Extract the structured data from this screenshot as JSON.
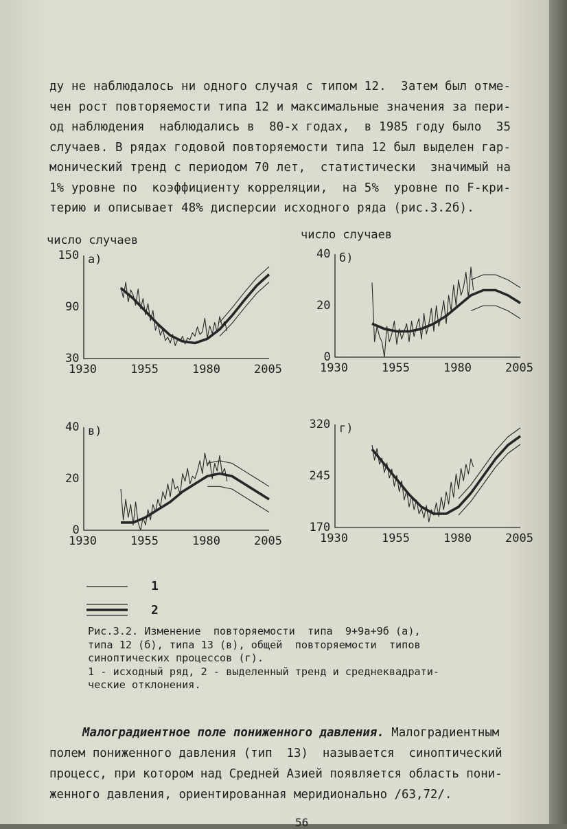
{
  "body_text": {
    "lines": [
      "ду не наблюдалось ни одного случая с типом 12.  Затем был отме-",
      "чен рост повторяемости типа 12 и максимальные значения за пери-",
      "од наблюдения  наблюдались в  80-х годах,  в 1985 году было  35",
      "случаев. В рядах годовой повторяемости типа 12 был выделен гар-",
      "монический тренд с периодом 70 лет,  статистически  значимый на",
      "1% уровне по  коэффициенту корреляции,  на 5%  уровне по F-кри-",
      "терию и описывает 48% дисперсии исходного ряда (рис.3.2б)."
    ]
  },
  "figure": {
    "ylabel_left": "число случаев",
    "ylabel_right": "число случаев",
    "legend": [
      {
        "label": "1"
      },
      {
        "label": "2"
      }
    ],
    "caption_lines": [
      "Рис.3.2. Изменение  повторяемости  типа  9+9а+9б (а),",
      "типа 12 (б), типа 13 (в), общей  повторяемости  типов",
      "синоптических процессов (г).",
      "1 - исходный ряд, 2 - выделенный тренд и среднеквадрати-",
      "ческие отклонения."
    ]
  },
  "chart_data": [
    {
      "type": "line",
      "panel": "а)",
      "x_ticks": [
        "1930",
        "1955",
        "1980",
        "2005"
      ],
      "y_ticks": [
        "30",
        "90",
        "150"
      ],
      "ylim": [
        30,
        150
      ],
      "xlim": [
        1930,
        2005
      ],
      "series": [
        {
          "name": "1",
          "x": [
            1945,
            1946,
            1947,
            1948,
            1949,
            1950,
            1951,
            1952,
            1953,
            1954,
            1955,
            1956,
            1957,
            1958,
            1959,
            1960,
            1961,
            1962,
            1963,
            1964,
            1965,
            1966,
            1967,
            1968,
            1969,
            1970,
            1971,
            1972,
            1973,
            1974,
            1975,
            1976,
            1977,
            1978,
            1979,
            1980,
            1981,
            1982,
            1983,
            1984,
            1985,
            1986,
            1987,
            1988
          ],
          "y": [
            113,
            101,
            119,
            96,
            110,
            104,
            92,
            111,
            88,
            100,
            81,
            94,
            74,
            86,
            63,
            71,
            57,
            64,
            51,
            55,
            48,
            58,
            45,
            52,
            50,
            56,
            47,
            54,
            52,
            60,
            56,
            67,
            58,
            61,
            77,
            54,
            68,
            59,
            72,
            60,
            79,
            68,
            73,
            62
          ]
        },
        {
          "name": "2",
          "x": [
            1945,
            1950,
            1955,
            1960,
            1965,
            1970,
            1975,
            1980,
            1985,
            1990,
            1995,
            2000,
            2005
          ],
          "y": [
            112,
            100,
            85,
            70,
            57,
            50,
            48,
            53,
            64,
            80,
            98,
            115,
            128
          ]
        },
        {
          "name": "2 (+σ)",
          "x": [
            1985,
            1990,
            1995,
            2000,
            2005
          ],
          "y": [
            72,
            89,
            107,
            124,
            137
          ]
        },
        {
          "name": "2 (-σ)",
          "x": [
            1985,
            1990,
            1995,
            2000,
            2005
          ],
          "y": [
            56,
            71,
            89,
            106,
            119
          ]
        }
      ]
    },
    {
      "type": "line",
      "panel": "б)",
      "x_ticks": [
        "1930",
        "1955",
        "1980",
        "2005"
      ],
      "y_ticks": [
        "0",
        "20",
        "40"
      ],
      "ylim": [
        0,
        40
      ],
      "xlim": [
        1930,
        2005
      ],
      "series": [
        {
          "name": "1",
          "x": [
            1945,
            1946,
            1947,
            1948,
            1949,
            1950,
            1951,
            1952,
            1953,
            1954,
            1955,
            1956,
            1957,
            1958,
            1959,
            1960,
            1961,
            1962,
            1963,
            1964,
            1965,
            1966,
            1967,
            1968,
            1969,
            1970,
            1971,
            1972,
            1973,
            1974,
            1975,
            1976,
            1977,
            1978,
            1979,
            1980,
            1981,
            1982,
            1983,
            1984,
            1985,
            1986
          ],
          "y": [
            29,
            6,
            12,
            8,
            6,
            0,
            12,
            6,
            9,
            14,
            5,
            11,
            7,
            10,
            13,
            6,
            14,
            8,
            12,
            15,
            7,
            17,
            9,
            13,
            19,
            10,
            20,
            12,
            16,
            22,
            13,
            24,
            18,
            28,
            20,
            30,
            24,
            27,
            33,
            23,
            35,
            26
          ]
        },
        {
          "name": "2",
          "x": [
            1945,
            1950,
            1955,
            1960,
            1965,
            1970,
            1975,
            1980,
            1985,
            1990,
            1995,
            2000,
            2005
          ],
          "y": [
            13,
            11,
            10,
            10,
            11,
            13,
            16,
            20,
            24,
            26,
            26,
            24,
            21
          ]
        },
        {
          "name": "2 (+σ)",
          "x": [
            1985,
            1990,
            1995,
            2000,
            2005
          ],
          "y": [
            30,
            32,
            32,
            30,
            27
          ]
        },
        {
          "name": "2 (-σ)",
          "x": [
            1985,
            1990,
            1995,
            2000,
            2005
          ],
          "y": [
            18,
            20,
            20,
            18,
            15
          ]
        }
      ]
    },
    {
      "type": "line",
      "panel": "в)",
      "x_ticks": [
        "1930",
        "1955",
        "1980",
        "2005"
      ],
      "y_ticks": [
        "0",
        "20",
        "40"
      ],
      "ylim": [
        0,
        40
      ],
      "xlim": [
        1930,
        2005
      ],
      "series": [
        {
          "name": "1",
          "x": [
            1945,
            1946,
            1947,
            1948,
            1949,
            1950,
            1951,
            1952,
            1953,
            1954,
            1955,
            1956,
            1957,
            1958,
            1959,
            1960,
            1961,
            1962,
            1963,
            1964,
            1965,
            1966,
            1967,
            1968,
            1969,
            1970,
            1971,
            1972,
            1973,
            1974,
            1975,
            1976,
            1977,
            1978,
            1979,
            1980,
            1981,
            1982,
            1983,
            1984,
            1985,
            1986,
            1987,
            1988
          ],
          "y": [
            16,
            4,
            12,
            5,
            10,
            2,
            11,
            3,
            0,
            5,
            2,
            8,
            4,
            10,
            7,
            12,
            9,
            15,
            12,
            18,
            13,
            20,
            16,
            17,
            14,
            22,
            19,
            24,
            18,
            21,
            20,
            23,
            27,
            22,
            30,
            25,
            27,
            20,
            26,
            23,
            29,
            22,
            24,
            19
          ]
        },
        {
          "name": "2",
          "x": [
            1945,
            1950,
            1955,
            1960,
            1965,
            1970,
            1975,
            1980,
            1985,
            1990,
            1995,
            2000,
            2005
          ],
          "y": [
            3,
            3,
            5,
            8,
            11,
            15,
            18,
            21,
            22,
            21,
            18,
            15,
            12
          ]
        },
        {
          "name": "2 (+σ)",
          "x": [
            1980,
            1985,
            1990,
            1995,
            2000,
            2005
          ],
          "y": [
            26,
            27,
            26,
            23,
            20,
            17
          ]
        },
        {
          "name": "2 (-σ)",
          "x": [
            1980,
            1985,
            1990,
            1995,
            2000,
            2005
          ],
          "y": [
            17,
            17,
            16,
            13,
            10,
            7
          ]
        }
      ]
    },
    {
      "type": "line",
      "panel": "г)",
      "x_ticks": [
        "1930",
        "1955",
        "1980",
        "2005"
      ],
      "y_ticks": [
        "170",
        "245",
        "320"
      ],
      "ylim": [
        170,
        320
      ],
      "xlim": [
        1930,
        2005
      ],
      "series": [
        {
          "name": "1",
          "x": [
            1945,
            1946,
            1947,
            1948,
            1949,
            1950,
            1951,
            1952,
            1953,
            1954,
            1955,
            1956,
            1957,
            1958,
            1959,
            1960,
            1961,
            1962,
            1963,
            1964,
            1965,
            1966,
            1967,
            1968,
            1969,
            1970,
            1971,
            1972,
            1973,
            1974,
            1975,
            1976,
            1977,
            1978,
            1979,
            1980,
            1981,
            1982,
            1983,
            1984,
            1985,
            1986
          ],
          "y": [
            290,
            268,
            285,
            262,
            271,
            250,
            264,
            242,
            255,
            230,
            246,
            222,
            238,
            210,
            224,
            200,
            216,
            196,
            210,
            190,
            198,
            184,
            202,
            178,
            196,
            188,
            206,
            186,
            214,
            196,
            222,
            204,
            236,
            214,
            248,
            226,
            256,
            238,
            262,
            248,
            270,
            258
          ]
        },
        {
          "name": "2",
          "x": [
            1945,
            1950,
            1955,
            1960,
            1965,
            1970,
            1975,
            1980,
            1985,
            1990,
            1995,
            2000,
            2005
          ],
          "y": [
            284,
            262,
            240,
            218,
            200,
            190,
            190,
            200,
            220,
            245,
            270,
            290,
            303
          ]
        },
        {
          "name": "2 (+σ)",
          "x": [
            1980,
            1985,
            1990,
            1995,
            2000,
            2005
          ],
          "y": [
            212,
            232,
            257,
            282,
            302,
            315
          ]
        },
        {
          "name": "2 (-σ)",
          "x": [
            1980,
            1985,
            1990,
            1995,
            2000,
            2005
          ],
          "y": [
            188,
            208,
            233,
            258,
            278,
            291
          ]
        }
      ]
    }
  ],
  "subsection": {
    "heading": "Малоградиентное поле пониженного давления.",
    "first_line_rest": " Малоградиентным",
    "lines": [
      "полем пониженного давления (тип  13)  называется  синоптический",
      "процесс, при котором над Средней Азией появляется область пони-",
      "женного давления, ориентированная меридионально /63,72/."
    ]
  },
  "page_number": "56"
}
